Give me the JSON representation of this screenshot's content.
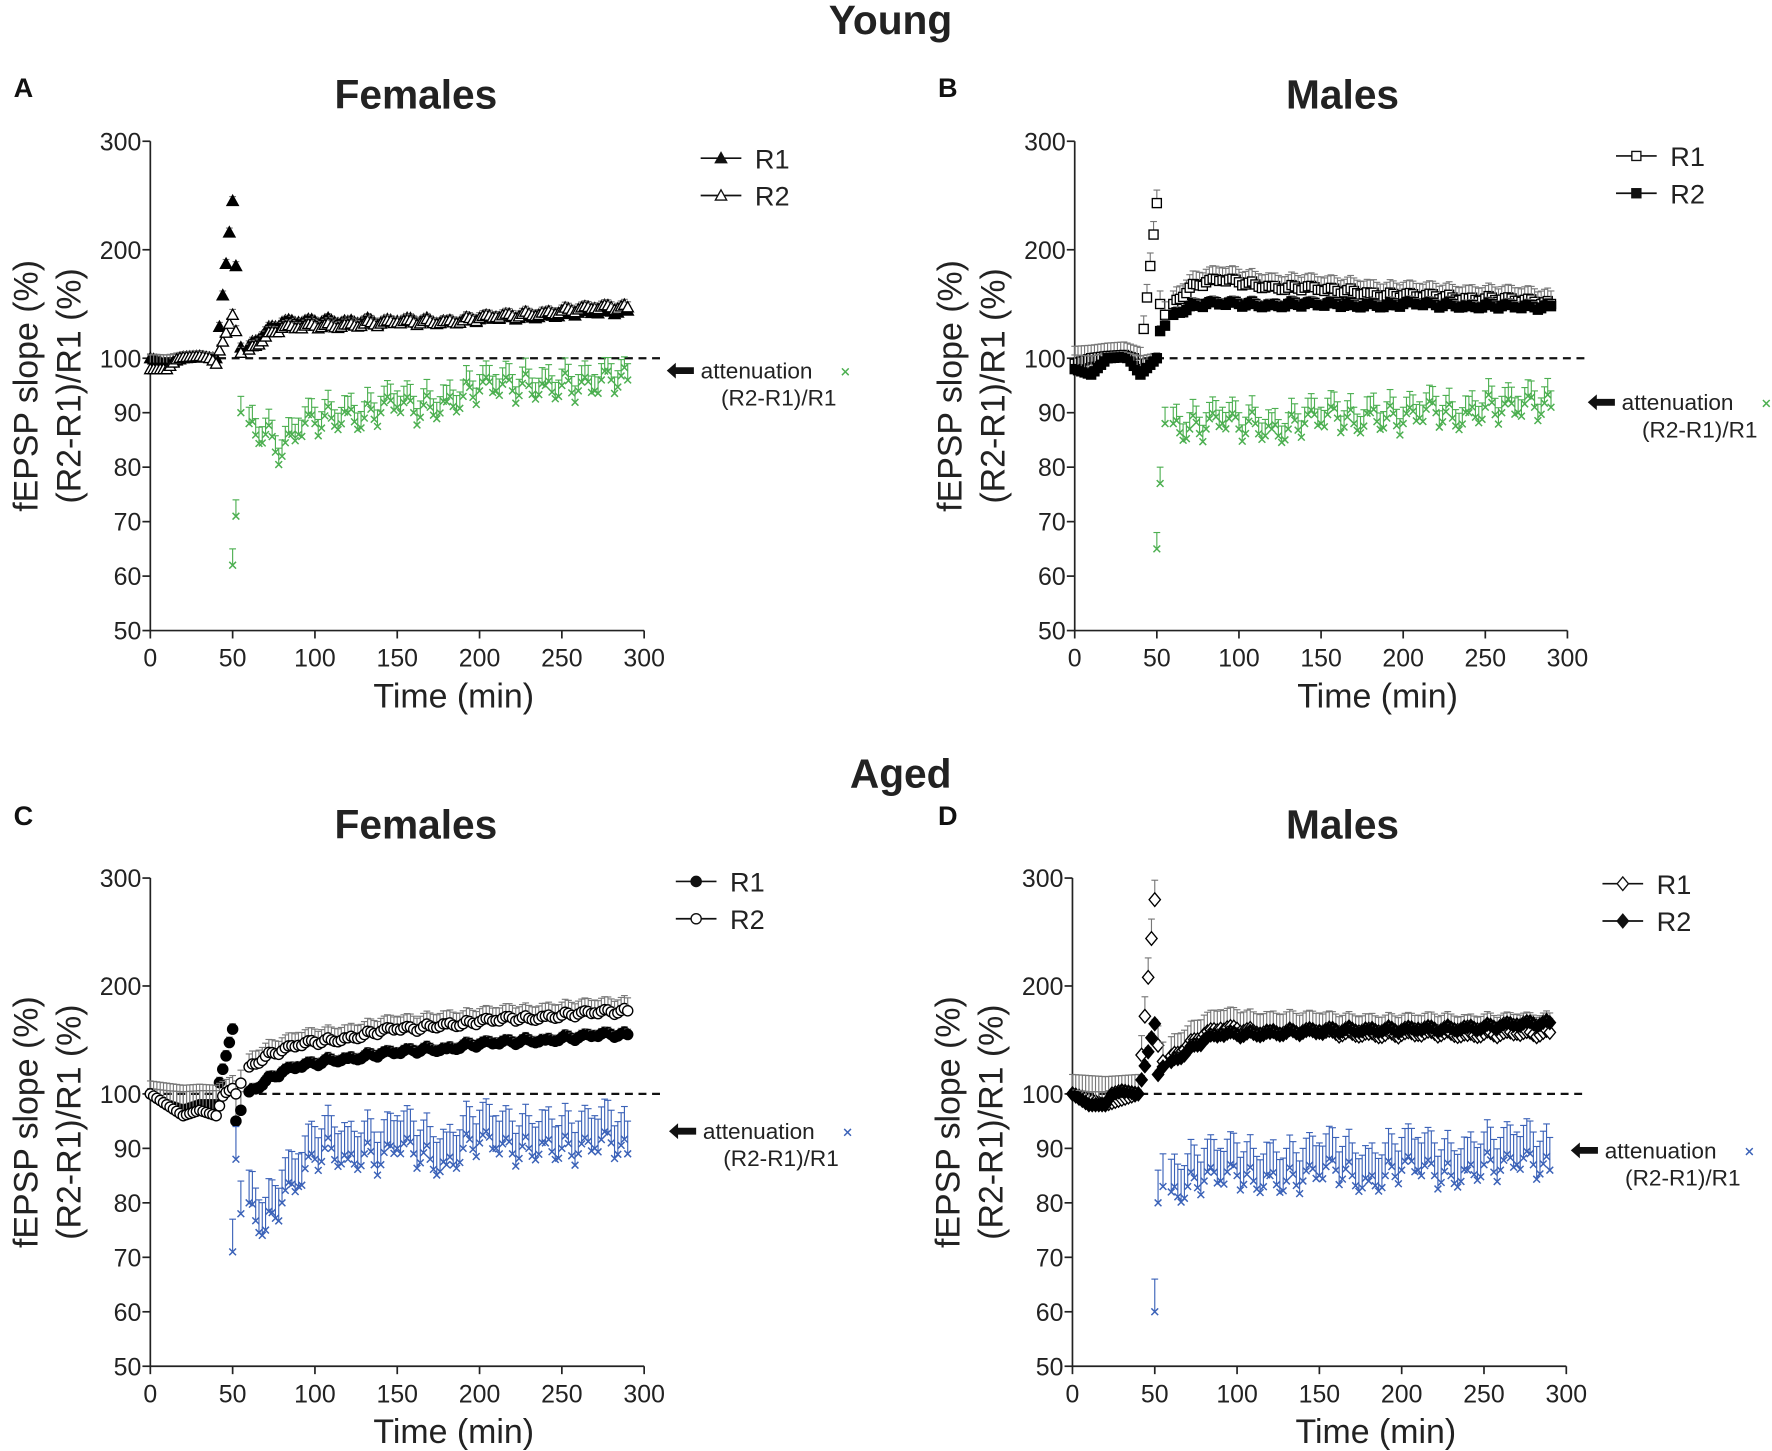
{
  "group_titles": {
    "young": "Young",
    "aged": "Aged"
  },
  "colors": {
    "young_attenuation": "#4caf50",
    "aged_attenuation": "#3b62b8",
    "series": "#000000"
  },
  "chart_data": [
    {
      "panel": "A",
      "title": "Females",
      "group": "Young",
      "type": "scatter",
      "xlabel": "Time (min)",
      "ylabel": [
        "fEPSP slope (%)",
        "(R2-R1)/R1 (%)"
      ],
      "xlim": [
        0,
        300
      ],
      "xticks": [
        0,
        50,
        100,
        150,
        200,
        250,
        300
      ],
      "ylim": [
        50,
        300
      ],
      "yticks": [
        50,
        60,
        70,
        80,
        90,
        100,
        200,
        300
      ],
      "reference_line": 100,
      "x": [
        0,
        10,
        20,
        30,
        40,
        50,
        52,
        55,
        60,
        70,
        80,
        90,
        100,
        110,
        120,
        130,
        140,
        150,
        160,
        170,
        180,
        190,
        200,
        210,
        220,
        230,
        240,
        250,
        260,
        270,
        280,
        290
      ],
      "series": [
        {
          "name": "R1",
          "marker": "triangle-filled",
          "sem": 4,
          "values": [
            100,
            99,
            100,
            101,
            100,
            245,
            185,
            110,
            112,
            125,
            133,
            133,
            134,
            135,
            134,
            135,
            133,
            134,
            135,
            135,
            134,
            135,
            136,
            137,
            138,
            139,
            140,
            141,
            142,
            142,
            143,
            144
          ]
        },
        {
          "name": "R2",
          "marker": "triangle-open",
          "sem": 5,
          "values": [
            98,
            98,
            101,
            102,
            99,
            140,
            125,
            105,
            108,
            120,
            128,
            128,
            130,
            130,
            131,
            132,
            132,
            133,
            133,
            134,
            134,
            135,
            137,
            138,
            139,
            141,
            142,
            144,
            145,
            146,
            147,
            147
          ]
        }
      ],
      "attenuation": {
        "name": "attenuation",
        "sublabel": "(R2-R1)/R1",
        "marker": "x",
        "sem": 3,
        "color_key": "young_attenuation",
        "values": [
          null,
          null,
          null,
          null,
          null,
          62,
          71,
          90,
          88,
          86,
          82,
          86,
          88,
          89,
          90,
          89,
          90,
          91,
          90,
          91,
          92,
          93,
          94,
          94,
          94,
          95,
          95,
          95,
          94,
          94,
          96,
          96
        ]
      }
    },
    {
      "panel": "B",
      "title": "Males",
      "group": "Young",
      "type": "scatter",
      "xlabel": "Time (min)",
      "ylabel": [
        "fEPSP slope (%)",
        "(R2-R1)/R1 (%)"
      ],
      "xlim": [
        0,
        300
      ],
      "xticks": [
        0,
        50,
        100,
        150,
        200,
        250,
        300
      ],
      "ylim": [
        50,
        300
      ],
      "yticks": [
        50,
        60,
        70,
        80,
        90,
        100,
        200,
        300
      ],
      "reference_line": 100,
      "x": [
        0,
        10,
        20,
        30,
        40,
        50,
        52,
        55,
        60,
        70,
        80,
        90,
        100,
        110,
        120,
        130,
        140,
        150,
        160,
        170,
        180,
        190,
        200,
        210,
        220,
        230,
        240,
        250,
        260,
        270,
        280,
        290
      ],
      "series": [
        {
          "name": "R1",
          "marker": "square-open",
          "sem": 12,
          "values": [
            99,
            100,
            102,
            103,
            98,
            243,
            150,
            140,
            150,
            165,
            170,
            172,
            170,
            168,
            166,
            165,
            165,
            163,
            162,
            162,
            160,
            158,
            158,
            157,
            157,
            156,
            155,
            155,
            154,
            153,
            152,
            150
          ]
        },
        {
          "name": "R2",
          "marker": "square-filled",
          "sem": 5,
          "values": [
            98,
            97,
            100,
            101,
            97,
            100,
            125,
            130,
            140,
            148,
            150,
            150,
            150,
            150,
            149,
            150,
            150,
            149,
            150,
            149,
            150,
            149,
            150,
            150,
            149,
            150,
            148,
            149,
            148,
            147,
            147,
            148
          ]
        }
      ],
      "attenuation": {
        "name": "attenuation",
        "sublabel": "(R2-R1)/R1",
        "marker": "x",
        "sem": 3,
        "color_key": "young_attenuation",
        "values": [
          null,
          null,
          null,
          null,
          null,
          65,
          77,
          88,
          88,
          87,
          87,
          88,
          87,
          88,
          87,
          87,
          88,
          88,
          89,
          88,
          90,
          89,
          88,
          89,
          90,
          89,
          90,
          91,
          90,
          90,
          91,
          91
        ]
      }
    },
    {
      "panel": "C",
      "title": "Females",
      "group": "Aged",
      "type": "scatter",
      "xlabel": "Time (min)",
      "ylabel": [
        "fEPSP slope (%)",
        "(R2-R1)/R1 (%)"
      ],
      "xlim": [
        0,
        300
      ],
      "xticks": [
        0,
        50,
        100,
        150,
        200,
        250,
        300
      ],
      "ylim": [
        50,
        300
      ],
      "yticks": [
        50,
        60,
        70,
        80,
        90,
        100,
        200,
        300
      ],
      "reference_line": 100,
      "x": [
        0,
        10,
        20,
        30,
        40,
        50,
        52,
        55,
        60,
        70,
        80,
        90,
        100,
        110,
        120,
        130,
        140,
        150,
        160,
        170,
        180,
        190,
        200,
        210,
        220,
        230,
        240,
        250,
        260,
        270,
        280,
        290
      ],
      "series": [
        {
          "name": "R1",
          "marker": "circle-filled",
          "sem": 5,
          "values": [
            100,
            98,
            97,
            98,
            98,
            160,
            95,
            97,
            102,
            112,
            120,
            125,
            128,
            132,
            133,
            135,
            137,
            138,
            140,
            142,
            142,
            145,
            146,
            147,
            148,
            150,
            150,
            152,
            152,
            154,
            155,
            155
          ]
        },
        {
          "name": "R2",
          "marker": "circle-open",
          "sem": 12,
          "values": [
            100,
            98,
            96,
            97,
            96,
            105,
            100,
            110,
            125,
            135,
            140,
            145,
            148,
            150,
            152,
            155,
            158,
            160,
            160,
            163,
            165,
            165,
            167,
            168,
            170,
            170,
            172,
            173,
            174,
            175,
            176,
            177
          ]
        }
      ],
      "attenuation": {
        "name": "attenuation",
        "sublabel": "(R2-R1)/R1",
        "marker": "x",
        "sem": 6,
        "color_key": "aged_attenuation",
        "values": [
          null,
          null,
          null,
          null,
          null,
          71,
          88,
          78,
          80,
          75,
          80,
          83,
          88,
          90,
          88,
          89,
          87,
          90,
          89,
          88,
          87,
          90,
          91,
          90,
          89,
          90,
          91,
          90,
          89,
          90,
          91,
          89
        ]
      }
    },
    {
      "panel": "D",
      "title": "Males",
      "group": "Aged",
      "type": "scatter",
      "xlabel": "Time (min)",
      "ylabel": [
        "fEPSP slope (%)",
        "(R2-R1)/R1 (%)"
      ],
      "xlim": [
        0,
        300
      ],
      "xticks": [
        0,
        50,
        100,
        150,
        200,
        250,
        300
      ],
      "ylim": [
        50,
        300
      ],
      "yticks": [
        50,
        60,
        70,
        80,
        90,
        100,
        200,
        300
      ],
      "reference_line": 100,
      "x": [
        0,
        10,
        20,
        30,
        40,
        50,
        52,
        55,
        60,
        70,
        80,
        90,
        100,
        110,
        120,
        130,
        140,
        150,
        160,
        170,
        180,
        190,
        200,
        210,
        220,
        230,
        240,
        250,
        260,
        270,
        280,
        290
      ],
      "series": [
        {
          "name": "R1",
          "marker": "diamond-open",
          "sem": 18,
          "values": [
            100,
            99,
            98,
            99,
            100,
            280,
            145,
            130,
            135,
            145,
            155,
            160,
            160,
            158,
            158,
            158,
            157,
            157,
            156,
            156,
            156,
            155,
            155,
            155,
            156,
            156,
            155,
            156,
            155,
            156,
            155,
            157
          ]
        },
        {
          "name": "R2",
          "marker": "diamond-filled",
          "sem": 4,
          "values": [
            100,
            98,
            98,
            103,
            100,
            165,
            118,
            125,
            130,
            140,
            150,
            155,
            155,
            156,
            157,
            157,
            158,
            158,
            159,
            160,
            160,
            160,
            159,
            160,
            160,
            161,
            162,
            162,
            163,
            164,
            165,
            166
          ]
        }
      ],
      "attenuation": {
        "name": "attenuation",
        "sublabel": "(R2-R1)/R1",
        "marker": "x",
        "sem": 6,
        "color_key": "aged_attenuation",
        "values": [
          null,
          null,
          null,
          null,
          null,
          60,
          80,
          83,
          82,
          83,
          84,
          84,
          85,
          84,
          85,
          84,
          84,
          85,
          86,
          85,
          84,
          85,
          86,
          86,
          85,
          85,
          86,
          87,
          86,
          87,
          87,
          86
        ]
      }
    }
  ]
}
